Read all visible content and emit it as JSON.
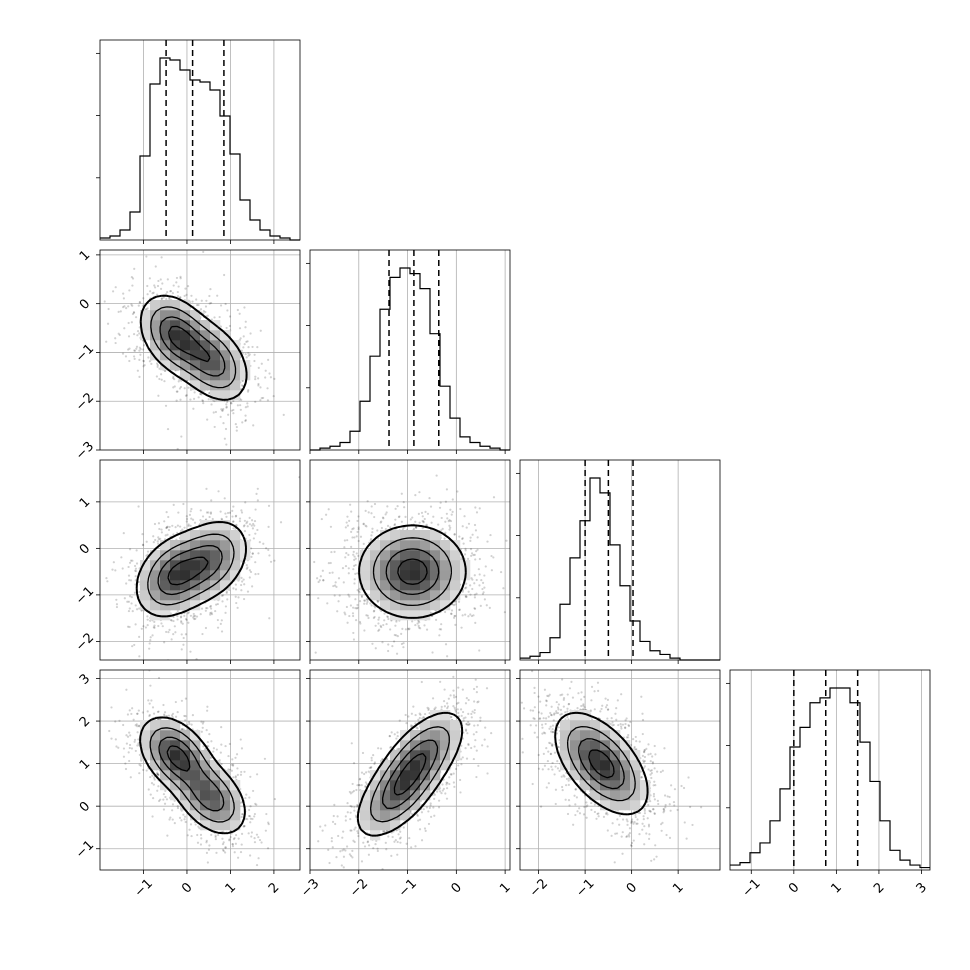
{
  "chart_data": {
    "type": "corner",
    "grid": true,
    "n_params": 4,
    "quantiles": [
      0.16,
      0.5,
      0.84
    ],
    "params": [
      {
        "name": "",
        "range": [
          -2.0,
          2.6
        ],
        "ticks": [
          "−1",
          "0",
          "1",
          "2"
        ],
        "tick_values": [
          -1,
          0,
          1,
          2
        ],
        "quantile_values": [
          -0.48,
          0.13,
          0.85
        ]
      },
      {
        "name": "",
        "range": [
          -3.0,
          1.1
        ],
        "ticks": [
          "−3",
          "−2",
          "−1",
          "0",
          "1"
        ],
        "tick_values": [
          -3,
          -2,
          -1,
          0,
          1
        ],
        "quantile_values": [
          -1.38,
          -0.87,
          -0.36
        ]
      },
      {
        "name": "",
        "range": [
          -2.4,
          1.9
        ],
        "ticks": [
          "−2",
          "−1",
          "0",
          "1"
        ],
        "tick_values": [
          -2,
          -1,
          0,
          1
        ],
        "quantile_values": [
          -1.0,
          -0.5,
          0.03
        ]
      },
      {
        "name": "",
        "range": [
          -1.5,
          3.2
        ],
        "ticks": [
          "−1",
          "0",
          "1",
          "2",
          "3"
        ],
        "tick_values": [
          -1,
          0,
          1,
          2,
          3
        ],
        "quantile_values": [
          0.0,
          0.75,
          1.5
        ]
      }
    ],
    "histograms": [
      [
        0.01,
        0.02,
        0.05,
        0.14,
        0.42,
        0.78,
        0.91,
        0.9,
        0.85,
        0.8,
        0.79,
        0.75,
        0.62,
        0.43,
        0.2,
        0.1,
        0.05,
        0.02,
        0.01,
        0.0
      ],
      [
        0.0,
        0.01,
        0.02,
        0.04,
        0.1,
        0.26,
        0.5,
        0.75,
        0.92,
        0.97,
        0.94,
        0.86,
        0.62,
        0.34,
        0.17,
        0.07,
        0.04,
        0.02,
        0.01,
        0.0
      ],
      [
        0.01,
        0.02,
        0.04,
        0.12,
        0.3,
        0.55,
        0.75,
        0.98,
        0.9,
        0.62,
        0.4,
        0.21,
        0.1,
        0.05,
        0.03,
        0.01,
        0.0,
        0.0,
        0.0,
        0.0
      ],
      [
        0.02,
        0.03,
        0.07,
        0.11,
        0.2,
        0.33,
        0.5,
        0.58,
        0.68,
        0.7,
        0.74,
        0.74,
        0.68,
        0.52,
        0.36,
        0.2,
        0.08,
        0.04,
        0.02,
        0.01
      ]
    ],
    "pairs": [
      {
        "x": 0,
        "y": 1,
        "modes": [
          [
            -0.25,
            -0.65,
            0.55
          ],
          [
            0.6,
            -1.2,
            0.45
          ]
        ],
        "sigma": [
          0.42,
          0.42
        ],
        "cov": -0.35
      },
      {
        "x": 0,
        "y": 2,
        "modes": [
          [
            -0.3,
            -0.6,
            0.55
          ],
          [
            0.55,
            -0.25,
            0.45
          ]
        ],
        "sigma": [
          0.45,
          0.45
        ],
        "cov": 0.3
      },
      {
        "x": 1,
        "y": 2,
        "modes": [
          [
            -0.9,
            -0.5,
            1.0
          ]
        ],
        "sigma": [
          0.55,
          0.5
        ],
        "cov": 0.0
      },
      {
        "x": 0,
        "y": 3,
        "modes": [
          [
            -0.25,
            1.2,
            0.55
          ],
          [
            0.55,
            0.2,
            0.45
          ]
        ],
        "sigma": [
          0.42,
          0.45
        ],
        "cov": -0.4
      },
      {
        "x": 1,
        "y": 3,
        "modes": [
          [
            -1.2,
            0.3,
            0.5
          ],
          [
            -0.7,
            1.2,
            0.5
          ]
        ],
        "sigma": [
          0.45,
          0.55
        ],
        "cov": 0.6
      },
      {
        "x": 2,
        "y": 3,
        "modes": [
          [
            -0.65,
            1.0,
            1.0
          ]
        ],
        "sigma": [
          0.5,
          0.6
        ],
        "cov": -0.55
      }
    ]
  }
}
